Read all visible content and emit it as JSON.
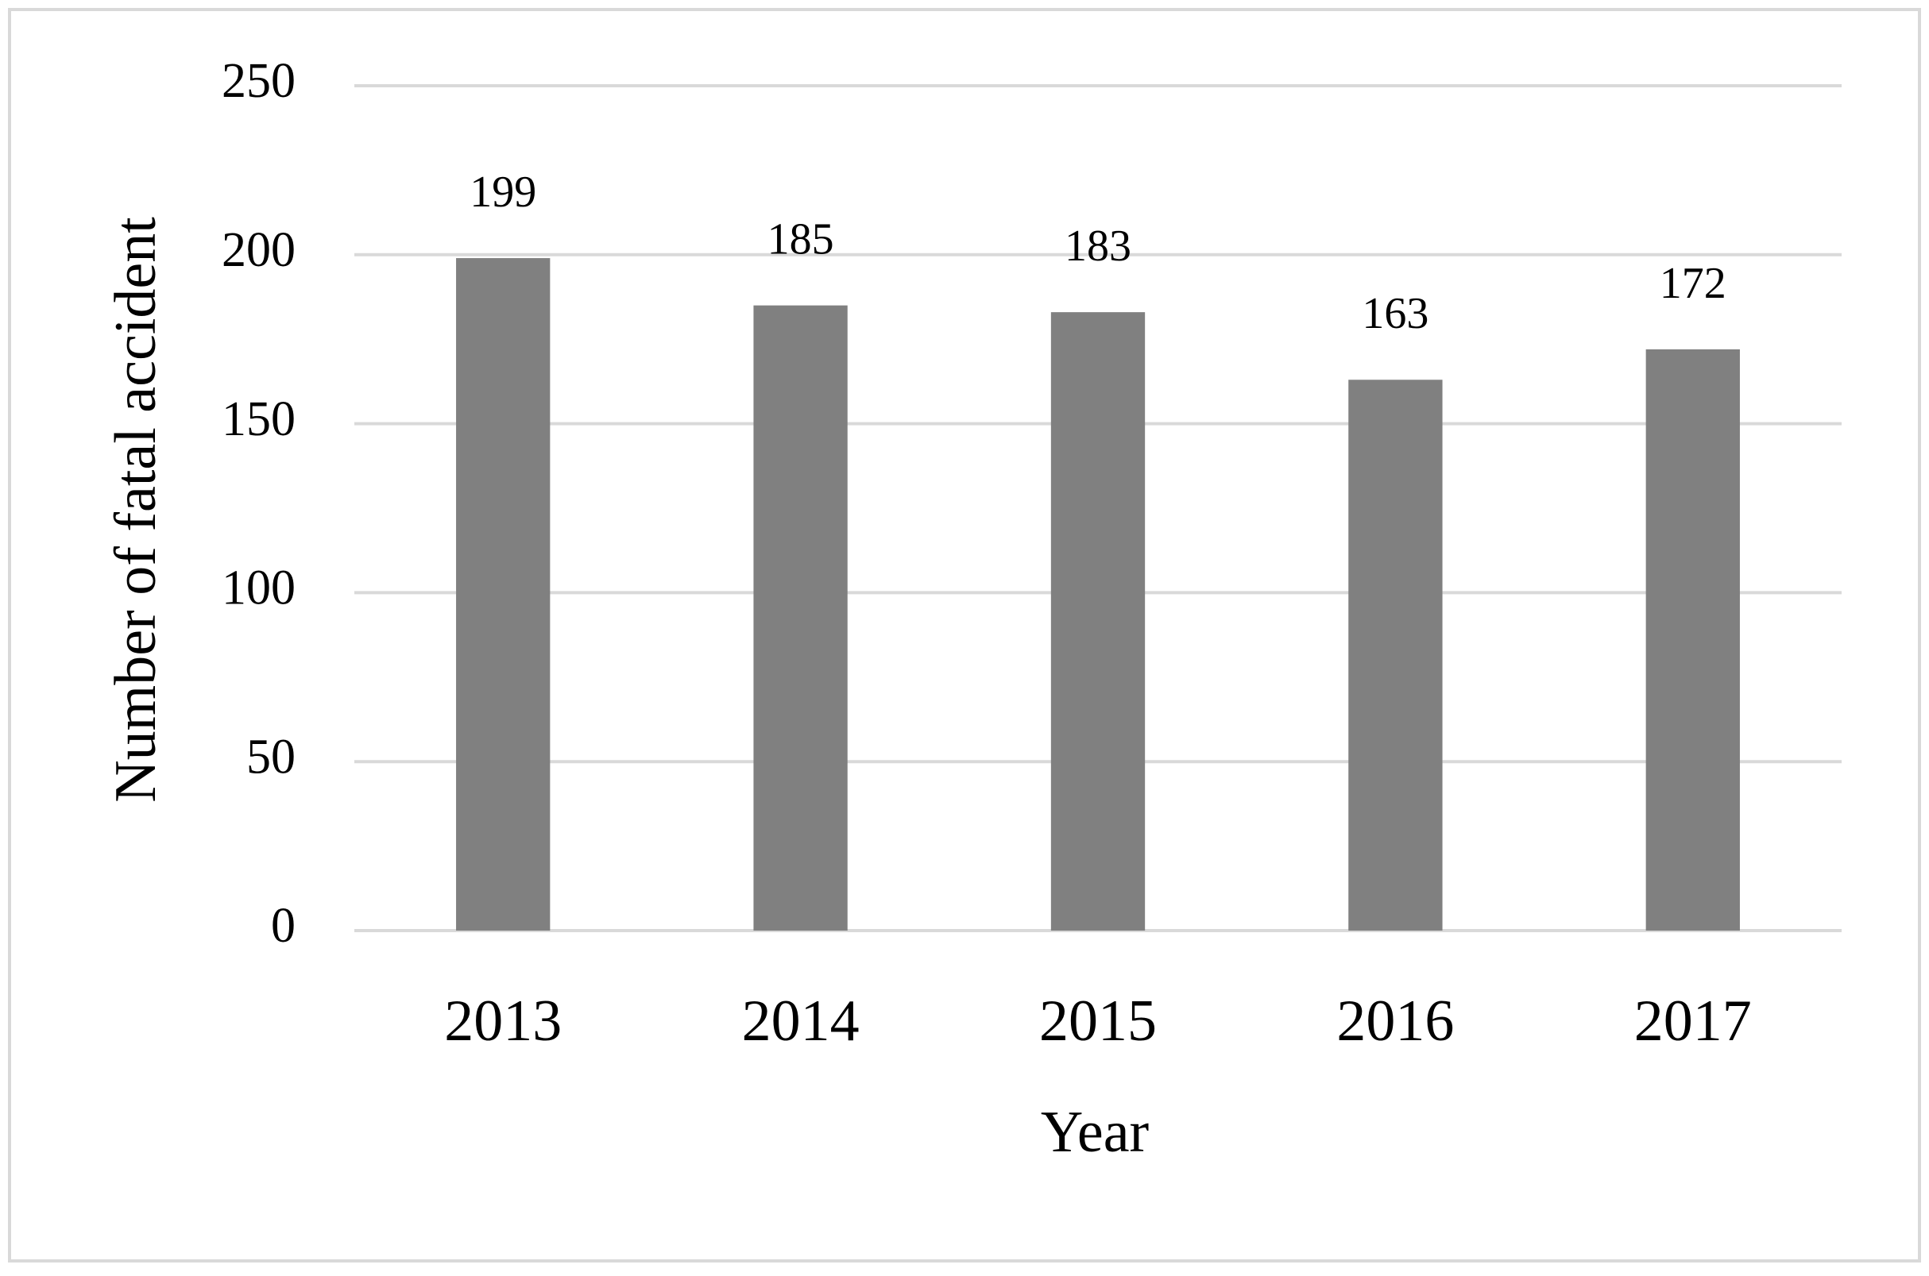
{
  "chart_data": {
    "type": "bar",
    "categories": [
      "2013",
      "2014",
      "2015",
      "2016",
      "2017"
    ],
    "values": [
      199,
      185,
      183,
      163,
      172
    ],
    "color": "#808080",
    "x_label": "Year",
    "y_label": "Number of fatal accident",
    "ylim": [
      0,
      250
    ],
    "yticks": [
      0,
      50,
      100,
      150,
      200,
      250
    ],
    "grid": true
  }
}
